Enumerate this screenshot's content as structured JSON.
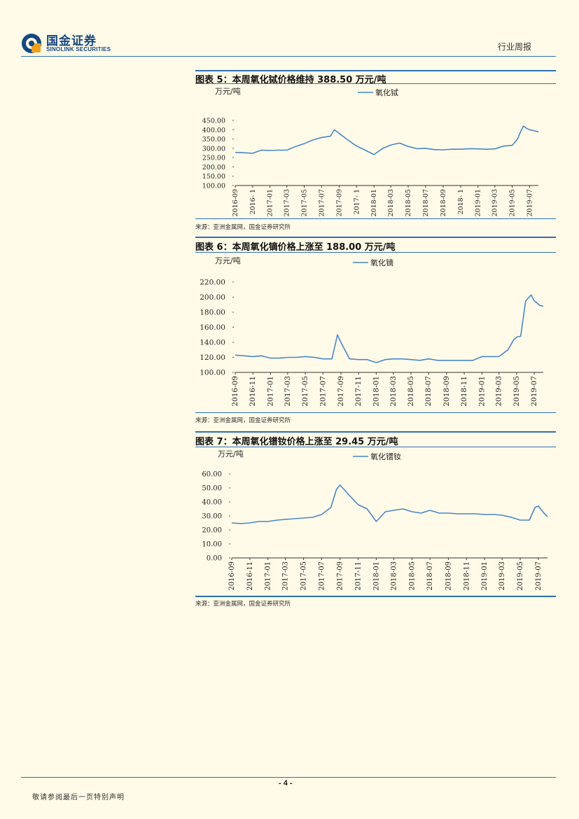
{
  "header": {
    "logo_cn": "国金证券",
    "logo_en": "SINOLINK SECURITIES",
    "report_type": "行业周报"
  },
  "colors": {
    "accent": "#2c6fb3",
    "series": "#4a86c8",
    "logo": "#16487f",
    "background": "#fffbe8"
  },
  "figures": [
    {
      "title": "图表 5：本周氧化铽价格维持 388.50 万元/吨",
      "source": "来源：亚洲金属网，国金证券研究所",
      "chart_data": {
        "type": "line",
        "ylabel": "万元/吨",
        "ylim": [
          100,
          450
        ],
        "yticks": [
          "450.00",
          "400.00",
          "350.00",
          "300.00",
          "250.00",
          "200.00",
          "150.00",
          "100.00"
        ],
        "xticks": [
          "2016-09",
          "2016-11",
          "2017-01",
          "2017-03",
          "2017-05",
          "2017-07",
          "2017-09",
          "2017-11",
          "2018-01",
          "2018-03",
          "2018-05",
          "2018-07",
          "2018-09",
          "2018-11",
          "2019-01",
          "2019-03",
          "2019-05",
          "2019-07"
        ],
        "xtick_labels": [
          "2016-09",
          "2016- 1",
          "2017-01",
          "2017-03",
          "2017-05",
          "2017-07",
          "2017-09",
          "2017- 1",
          "2018-01",
          "2018-03",
          "2018-05",
          "2018-07",
          "2018-09",
          "2018- 1",
          "2019-01",
          "2019-03",
          "2019-05",
          "2019-07"
        ],
        "series": [
          {
            "name": "氧化铽",
            "x": [
              "2016-09",
              "2016-10",
              "2016-11",
              "2016-12",
              "2017-01",
              "2017-02",
              "2017-03",
              "2017-04",
              "2017-05",
              "2017-06",
              "2017-07",
              "2017-08",
              "2017-08-15",
              "2017-09",
              "2017-10",
              "2017-11",
              "2017-12",
              "2018-01",
              "2018-02",
              "2018-03",
              "2018-04",
              "2018-05",
              "2018-06",
              "2018-07",
              "2018-08",
              "2018-09",
              "2018-10",
              "2018-11",
              "2018-12",
              "2019-01",
              "2019-02",
              "2019-03",
              "2019-04",
              "2019-05",
              "2019-05-20",
              "2019-06",
              "2019-06-10",
              "2019-06-20",
              "2019-07",
              "2019-07-20",
              "2019-08"
            ],
            "values": [
              278,
              276,
              273,
              290,
              288,
              290,
              290,
              310,
              325,
              345,
              358,
              365,
              400,
              380,
              345,
              312,
              290,
              266,
              300,
              318,
              328,
              310,
              298,
              300,
              293,
              292,
              295,
              295,
              298,
              297,
              295,
              297,
              312,
              316,
              350,
              395,
              420,
              408,
              400,
              393,
              388.5
            ]
          }
        ]
      }
    },
    {
      "title": "图表 6：本周氧化镝价格上涨至 188.00 万元/吨",
      "source": "来源：亚洲金属网，国金证券研究所",
      "chart_data": {
        "type": "line",
        "ylabel": "万元/吨",
        "ylim": [
          100,
          220
        ],
        "yticks": [
          "220.00",
          "200.00",
          "180.00",
          "160.00",
          "140.00",
          "120.00",
          "100.00"
        ],
        "xticks": [
          "2016-09",
          "2016-11",
          "2017-01",
          "2017-03",
          "2017-05",
          "2017-07",
          "2017-09",
          "2017-11",
          "2018-01",
          "2018-03",
          "2018-05",
          "2018-07",
          "2018-09",
          "2018-11",
          "2019-01",
          "2019-03",
          "2019-05",
          "2019-07"
        ],
        "xtick_labels": [
          "2016-09",
          "2016-11",
          "2017-01",
          "2017-03",
          "2017-05",
          "2017-07",
          "2017-09",
          "2017-11",
          "2018-01",
          "2018-03",
          "2018-05",
          "2018-07",
          "2018-09",
          "2018-11",
          "2019-01",
          "2019-03",
          "2019-05",
          "2019-07"
        ],
        "series": [
          {
            "name": "氧化镝",
            "x": [
              "2016-09",
              "2016-10",
              "2016-11",
              "2016-12",
              "2017-01",
              "2017-02",
              "2017-03",
              "2017-04",
              "2017-05",
              "2017-06",
              "2017-07",
              "2017-08",
              "2017-08-20",
              "2017-09",
              "2017-10",
              "2017-11",
              "2017-12",
              "2018-01",
              "2018-02",
              "2018-03",
              "2018-04",
              "2018-05",
              "2018-06",
              "2018-07",
              "2018-08",
              "2018-09",
              "2018-10",
              "2018-11",
              "2018-12",
              "2019-01",
              "2019-02",
              "2019-03",
              "2019-04",
              "2019-04-20",
              "2019-05",
              "2019-05-15",
              "2019-06",
              "2019-06-20",
              "2019-07",
              "2019-07-20",
              "2019-08"
            ],
            "values": [
              123,
              122,
              121,
              122,
              119,
              119,
              120,
              120,
              121,
              120,
              118,
              118,
              150,
              140,
              118,
              117,
              117,
              113,
              117,
              118,
              118,
              117,
              116,
              118,
              116,
              116,
              116,
              116,
              116,
              121,
              121,
              121,
              130,
              143,
              147,
              148,
              195,
              203,
              195,
              189,
              188
            ]
          }
        ]
      }
    },
    {
      "title": "图表 7：本周氧化镨钕价格上涨至 29.45 万元/吨",
      "source": "来源：亚洲金属网，国金证券研究所",
      "chart_data": {
        "type": "line",
        "ylabel": "万元/吨",
        "ylim": [
          0,
          60
        ],
        "yticks": [
          "60.00",
          "50.00",
          "40.00",
          "30.00",
          "20.00",
          "10.00",
          "0.00"
        ],
        "xticks": [
          "2016-09",
          "2016-11",
          "2017-01",
          "2017-03",
          "2017-05",
          "2017-07",
          "2017-09",
          "2017-11",
          "2018-01",
          "2018-03",
          "2018-05",
          "2018-07",
          "2018-09",
          "2018-11",
          "2019-01",
          "2019-03",
          "2019-05",
          "2019-07"
        ],
        "xtick_labels": [
          "2016-09",
          "2016-11",
          "2017-01",
          "2017-03",
          "2017-05",
          "2017-07",
          "2017-09",
          "2017-11",
          "2018-01",
          "2018-03",
          "2018-05",
          "2018-07",
          "2018-09",
          "2018-11",
          "2019-01",
          "2019-03",
          "2019-05",
          "2019-07"
        ],
        "series": [
          {
            "name": "氧化镨钕",
            "x": [
              "2016-09",
              "2016-10",
              "2016-11",
              "2016-12",
              "2017-01",
              "2017-02",
              "2017-03",
              "2017-04",
              "2017-05",
              "2017-06",
              "2017-07",
              "2017-08",
              "2017-08-20",
              "2017-09",
              "2017-10",
              "2017-11",
              "2017-12",
              "2018-01",
              "2018-02",
              "2018-03",
              "2018-04",
              "2018-05",
              "2018-06",
              "2018-07",
              "2018-08",
              "2018-09",
              "2018-10",
              "2018-11",
              "2018-12",
              "2019-01",
              "2019-02",
              "2019-03",
              "2019-04",
              "2019-05",
              "2019-06",
              "2019-06-20",
              "2019-07",
              "2019-07-20",
              "2019-08"
            ],
            "values": [
              25,
              24.5,
              25,
              26,
              26,
              27,
              27.5,
              28,
              28.5,
              29,
              31,
              36,
              49,
              52,
              45,
              38,
              35,
              26,
              33,
              34,
              35,
              33,
              32,
              34,
              32,
              32,
              31.5,
              31.5,
              31.5,
              31,
              31,
              30.5,
              29,
              27,
              27,
              36,
              37,
              32,
              29.45
            ]
          }
        ]
      }
    }
  ],
  "footer": {
    "page_number": "- 4 -",
    "disclaimer": "敬请参阅最后一页特别声明"
  }
}
